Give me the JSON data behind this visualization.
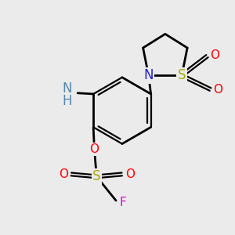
{
  "background_color": "#ebebeb",
  "bond_color": "#000000",
  "bond_width": 2.0,
  "atom_colors": {
    "N": "#2222CC",
    "O": "#FF0000",
    "S": "#AAAA00",
    "F": "#DD00DD",
    "NH": "#5588AA",
    "C": "#000000"
  },
  "figsize": [
    3.0,
    3.0
  ],
  "dpi": 100
}
